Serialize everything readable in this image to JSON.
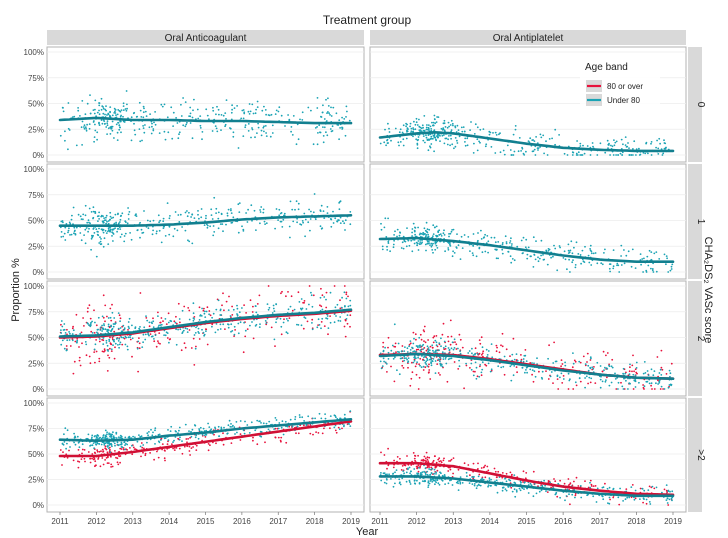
{
  "chart_data": {
    "type": "scatter",
    "title": "Treatment group",
    "xlabel": "Year",
    "ylabel": "Proportion %",
    "right_strip_title": "CHA₂DS₂ VASc score",
    "columns": [
      "Oral Anticoagulant",
      "Oral Antiplatelet"
    ],
    "rows": [
      "0",
      "1",
      "2",
      ">2"
    ],
    "x_ticks": [
      "2011",
      "2012",
      "2013",
      "2014",
      "2015",
      "2016",
      "2017",
      "2018",
      "2019"
    ],
    "y_ticks": [
      "0%",
      "25%",
      "50%",
      "75%",
      "100%"
    ],
    "xlim": [
      2011,
      2019
    ],
    "ylim": [
      0,
      100
    ],
    "legend": {
      "title": "Age band",
      "position": "inside top-right of Oral Antiplatelet / 0 panel",
      "entries": [
        {
          "label": "80 or over",
          "color": "#e8123c"
        },
        {
          "label": "Under 80",
          "color": "#1aa3b4"
        }
      ]
    },
    "colors": {
      "over80": "#e8123c",
      "under80": "#1aa3b4",
      "over80_trend": "#d01035",
      "under80_trend": "#127f8f",
      "strip": "#d9d9d9"
    },
    "panels": [
      {
        "row": "0",
        "column": "Oral Anticoagulant",
        "series": [
          {
            "name": "Under 80",
            "x": [
              2011,
              2012,
              2013,
              2014,
              2015,
              2016,
              2017,
              2018,
              2019
            ],
            "y": [
              34,
              36,
              34,
              34,
              33,
              33,
              32,
              31,
              31
            ],
            "spread": 10
          }
        ]
      },
      {
        "row": "0",
        "column": "Oral Antiplatelet",
        "series": [
          {
            "name": "Under 80",
            "x": [
              2011,
              2012,
              2012.5,
              2013,
              2014,
              2015,
              2016,
              2017,
              2018,
              2019
            ],
            "y": [
              17,
              21,
              22,
              21,
              16,
              11,
              7,
              5,
              4,
              4
            ],
            "spread": 7
          }
        ]
      },
      {
        "row": "1",
        "column": "Oral Anticoagulant",
        "series": [
          {
            "name": "Under 80",
            "x": [
              2011,
              2012,
              2013,
              2014,
              2015,
              2016,
              2017,
              2018,
              2019
            ],
            "y": [
              45,
              45,
              45,
              46,
              48,
              51,
              53,
              54,
              55
            ],
            "spread": 8
          }
        ]
      },
      {
        "row": "1",
        "column": "Oral Antiplatelet",
        "series": [
          {
            "name": "Under 80",
            "x": [
              2011,
              2012,
              2013,
              2014,
              2015,
              2016,
              2017,
              2018,
              2019
            ],
            "y": [
              32,
              33,
              30,
              26,
              21,
              16,
              12,
              10,
              10
            ],
            "spread": 7
          }
        ]
      },
      {
        "row": "2",
        "column": "Oral Anticoagulant",
        "series": [
          {
            "name": "80 or over",
            "x": [
              2011,
              2012,
              2013,
              2014,
              2015,
              2016,
              2017,
              2018,
              2019
            ],
            "y": [
              50,
              51,
              54,
              59,
              64,
              68,
              71,
              73,
              76
            ],
            "spread": 14
          },
          {
            "name": "Under 80",
            "x": [
              2011,
              2012,
              2013,
              2014,
              2015,
              2016,
              2017,
              2018,
              2019
            ],
            "y": [
              51,
              52,
              55,
              60,
              65,
              69,
              72,
              74,
              77
            ],
            "spread": 8
          }
        ]
      },
      {
        "row": "2",
        "column": "Oral Antiplatelet",
        "series": [
          {
            "name": "80 or over",
            "x": [
              2011,
              2012,
              2013,
              2014,
              2015,
              2016,
              2017,
              2018,
              2019
            ],
            "y": [
              33,
              34,
              33,
              29,
              24,
              19,
              14,
              11,
              10
            ],
            "spread": 13
          },
          {
            "name": "Under 80",
            "x": [
              2011,
              2012,
              2013,
              2014,
              2015,
              2016,
              2017,
              2018,
              2019
            ],
            "y": [
              32,
              34,
              32,
              28,
              23,
              18,
              14,
              11,
              10
            ],
            "spread": 7
          }
        ]
      },
      {
        "row": ">2",
        "column": "Oral Anticoagulant",
        "series": [
          {
            "name": "80 or over",
            "x": [
              2011,
              2012,
              2013,
              2014,
              2015,
              2016,
              2017,
              2018,
              2019
            ],
            "y": [
              48,
              48,
              52,
              57,
              62,
              67,
              72,
              77,
              82
            ],
            "spread": 5
          },
          {
            "name": "Under 80",
            "x": [
              2011,
              2012,
              2013,
              2014,
              2015,
              2016,
              2017,
              2018,
              2019
            ],
            "y": [
              64,
              63,
              64,
              68,
              71,
              75,
              78,
              81,
              84
            ],
            "spread": 4
          }
        ]
      },
      {
        "row": ">2",
        "column": "Oral Antiplatelet",
        "series": [
          {
            "name": "80 or over",
            "x": [
              2011,
              2012,
              2013,
              2014,
              2015,
              2016,
              2017,
              2018,
              2019
            ],
            "y": [
              41,
              41,
              38,
              31,
              24,
              18,
              14,
              11,
              10
            ],
            "spread": 5
          },
          {
            "name": "Under 80",
            "x": [
              2011,
              2012,
              2013,
              2014,
              2015,
              2016,
              2017,
              2018,
              2019
            ],
            "y": [
              28,
              28,
              26,
              22,
              18,
              14,
              11,
              9,
              9
            ],
            "spread": 4
          }
        ]
      }
    ]
  }
}
